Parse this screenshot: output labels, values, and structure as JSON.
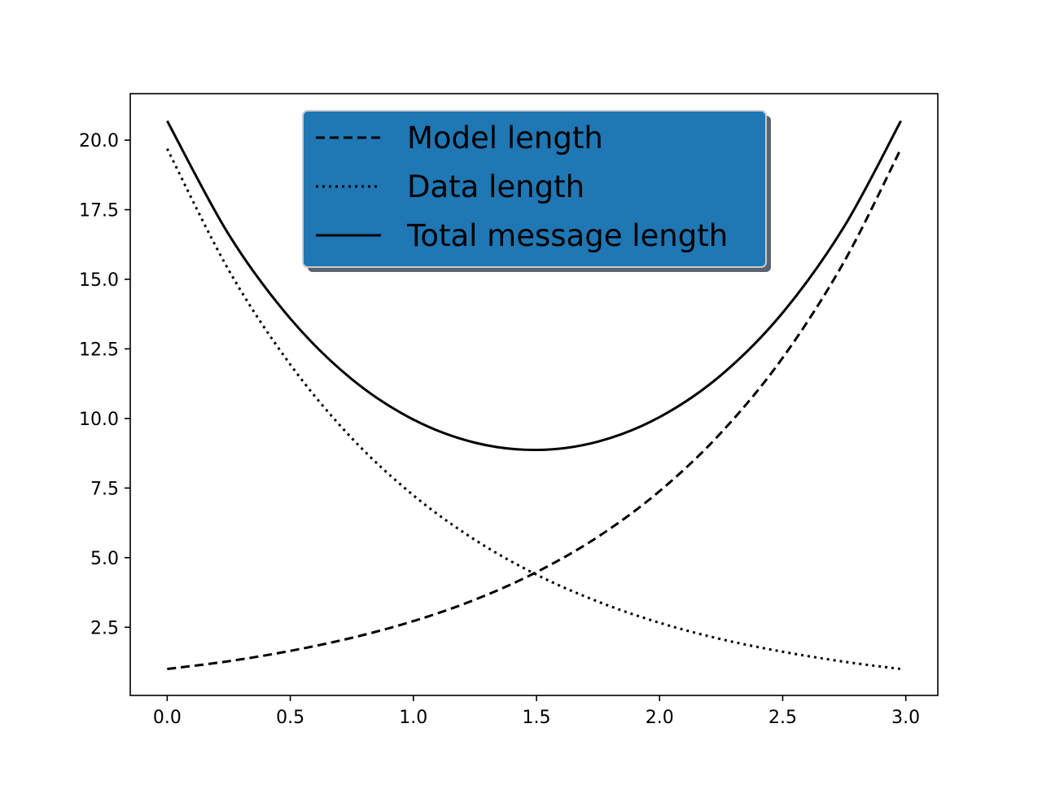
{
  "chart_data": {
    "type": "line",
    "title": "",
    "xlabel": "",
    "ylabel": "",
    "xlim": [
      -0.15,
      3.13
    ],
    "ylim": [
      0.05,
      21.67
    ],
    "grid": false,
    "x_ticks": [
      0.0,
      0.5,
      1.0,
      1.5,
      2.0,
      2.5,
      3.0
    ],
    "x_tick_labels": [
      "0.0",
      "0.5",
      "1.0",
      "1.5",
      "2.0",
      "2.5",
      "3.0"
    ],
    "y_ticks": [
      2.5,
      5.0,
      7.5,
      10.0,
      12.5,
      15.0,
      17.5,
      20.0
    ],
    "y_tick_labels": [
      "2.5",
      "5.0",
      "7.5",
      "10.0",
      "12.5",
      "15.0",
      "17.5",
      "20.0"
    ],
    "legend": {
      "position": "upper center",
      "facecolor": "#1f77b4",
      "edgecolor": "#cccccc",
      "shadow": true
    },
    "series": [
      {
        "name": "Model length",
        "style": "dashed",
        "color": "#000000",
        "x": [
          0.0,
          0.25,
          0.5,
          0.75,
          1.0,
          1.25,
          1.5,
          1.75,
          2.0,
          2.25,
          2.5,
          2.75,
          2.98
        ],
        "values": [
          1.0,
          1.28,
          1.65,
          2.12,
          2.72,
          3.49,
          4.48,
          5.75,
          7.39,
          9.49,
          12.18,
          15.64,
          19.69
        ]
      },
      {
        "name": "Data length",
        "style": "dotted",
        "color": "#000000",
        "x": [
          0.0,
          0.25,
          0.5,
          0.75,
          1.0,
          1.25,
          1.5,
          1.75,
          2.0,
          2.25,
          2.5,
          2.75,
          2.98
        ],
        "values": [
          19.69,
          15.33,
          11.94,
          9.29,
          7.24,
          5.64,
          4.39,
          3.42,
          2.66,
          2.07,
          1.62,
          1.26,
          1.0
        ]
      },
      {
        "name": "Total message length",
        "style": "solid",
        "color": "#000000",
        "x": [
          0.0,
          0.25,
          0.5,
          0.75,
          1.0,
          1.25,
          1.5,
          1.75,
          2.0,
          2.25,
          2.5,
          2.75,
          2.98
        ],
        "values": [
          20.69,
          16.61,
          13.59,
          11.41,
          9.96,
          9.13,
          8.87,
          9.17,
          10.05,
          11.56,
          13.8,
          16.9,
          20.69
        ]
      }
    ]
  }
}
